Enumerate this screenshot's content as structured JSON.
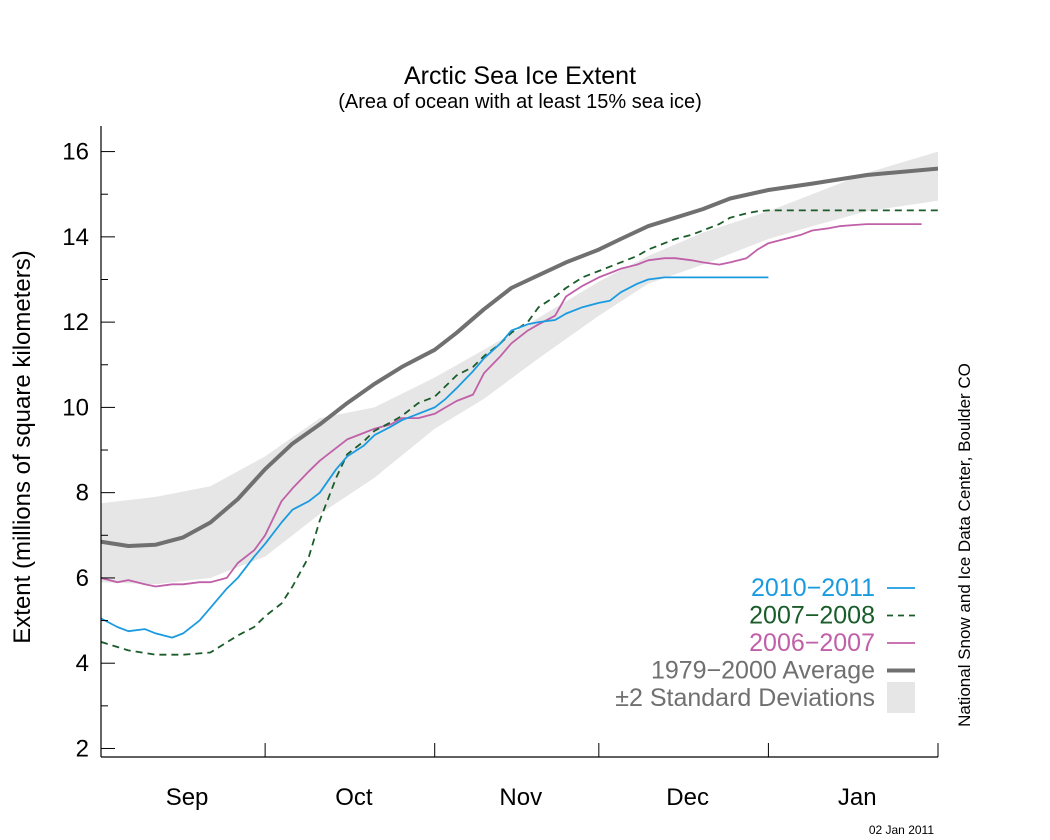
{
  "chart_data": {
    "type": "line",
    "title": "Arctic Sea Ice Extent",
    "subtitle": "(Area of ocean with at least 15% sea ice)",
    "ylabel": "Extent (millions of square kilometers)",
    "xlabel": "",
    "ylim": [
      1.8,
      16.6
    ],
    "yticks": [
      2,
      4,
      6,
      8,
      10,
      12,
      14,
      16
    ],
    "xlim": [
      0,
      153
    ],
    "months": [
      {
        "label": "Sep",
        "center": 15
      },
      {
        "label": "Oct",
        "center": 45.5
      },
      {
        "label": "Nov",
        "center": 76
      },
      {
        "label": "Dec",
        "center": 106.5
      },
      {
        "label": "Jan",
        "center": 137.5
      }
    ],
    "month_boundaries": [
      0,
      30,
      61,
      91,
      122,
      153
    ],
    "credit": "National Snow and Ice Data Center, Boulder CO",
    "date_stamp": "02 Jan 2011",
    "grid": false,
    "legend_placement": "bottom-right",
    "band": {
      "name": "±2 Standard Deviations",
      "color": "#e6e6e6",
      "x": [
        0,
        10,
        20,
        30,
        40,
        50,
        61,
        70,
        80,
        91,
        100,
        110,
        122,
        130,
        140,
        153
      ],
      "upper": [
        7.75,
        7.9,
        8.15,
        8.85,
        9.75,
        10.0,
        10.7,
        11.35,
        12.1,
        12.95,
        13.55,
        14.1,
        14.6,
        15.0,
        15.5,
        16.0
      ],
      "lower": [
        5.9,
        5.85,
        6.0,
        6.5,
        7.5,
        8.35,
        9.5,
        10.2,
        11.15,
        12.15,
        12.9,
        13.35,
        13.95,
        14.25,
        14.6,
        14.85
      ]
    },
    "series": [
      {
        "name": "1979−2000 Average",
        "color": "#707070",
        "style": "thick",
        "x": [
          0,
          5,
          10,
          15,
          20,
          25,
          30,
          35,
          40,
          45,
          50,
          55,
          61,
          65,
          70,
          75,
          80,
          85,
          91,
          95,
          100,
          105,
          110,
          115,
          122,
          130,
          140,
          153
        ],
        "y": [
          6.85,
          6.75,
          6.78,
          6.95,
          7.3,
          7.85,
          8.55,
          9.15,
          9.6,
          10.1,
          10.55,
          10.95,
          11.35,
          11.75,
          12.3,
          12.8,
          13.1,
          13.4,
          13.7,
          13.95,
          14.25,
          14.45,
          14.65,
          14.9,
          15.1,
          15.25,
          15.45,
          15.6
        ]
      },
      {
        "name": "2006−2007",
        "color": "#c060a8",
        "style": "solid",
        "x": [
          0,
          3,
          5,
          8,
          10,
          13,
          15,
          18,
          20,
          23,
          25,
          28,
          30,
          33,
          35,
          38,
          40,
          43,
          45,
          48,
          50,
          53,
          55,
          58,
          61,
          63,
          65,
          68,
          70,
          73,
          75,
          78,
          80,
          83,
          85,
          88,
          91,
          93,
          95,
          98,
          100,
          103,
          105,
          108,
          110,
          113,
          115,
          118,
          120,
          122,
          125,
          128,
          130,
          133,
          135,
          138,
          140,
          143,
          145,
          148,
          150
        ],
        "y": [
          6.0,
          5.9,
          5.95,
          5.85,
          5.8,
          5.85,
          5.85,
          5.9,
          5.9,
          6.0,
          6.35,
          6.65,
          7.0,
          7.8,
          8.1,
          8.5,
          8.75,
          9.05,
          9.25,
          9.4,
          9.5,
          9.6,
          9.75,
          9.75,
          9.85,
          10.0,
          10.15,
          10.3,
          10.8,
          11.2,
          11.5,
          11.8,
          11.95,
          12.15,
          12.6,
          12.85,
          13.05,
          13.15,
          13.25,
          13.35,
          13.45,
          13.5,
          13.5,
          13.45,
          13.4,
          13.35,
          13.4,
          13.5,
          13.7,
          13.85,
          13.95,
          14.05,
          14.15,
          14.2,
          14.25,
          14.28,
          14.3,
          14.3,
          14.3,
          14.3,
          14.3
        ]
      },
      {
        "name": "2007−2008",
        "color": "#1a5c2a",
        "style": "dashed",
        "x": [
          0,
          5,
          10,
          15,
          20,
          25,
          28,
          30,
          33,
          35,
          38,
          40,
          43,
          45,
          48,
          50,
          53,
          55,
          58,
          61,
          63,
          65,
          68,
          70,
          73,
          75,
          78,
          80,
          83,
          85,
          88,
          91,
          93,
          95,
          98,
          100,
          103,
          105,
          108,
          110,
          113,
          115,
          118,
          120,
          122,
          125,
          128,
          130,
          133,
          135,
          138,
          140,
          143,
          145,
          148,
          150,
          153
        ],
        "y": [
          4.5,
          4.3,
          4.2,
          4.2,
          4.25,
          4.65,
          4.85,
          5.1,
          5.4,
          5.8,
          6.5,
          7.35,
          8.35,
          8.9,
          9.2,
          9.45,
          9.65,
          9.8,
          10.1,
          10.25,
          10.5,
          10.75,
          10.95,
          11.2,
          11.5,
          11.75,
          12.0,
          12.35,
          12.6,
          12.8,
          13.05,
          13.2,
          13.3,
          13.4,
          13.55,
          13.7,
          13.85,
          13.95,
          14.05,
          14.15,
          14.3,
          14.45,
          14.55,
          14.6,
          14.62,
          14.62,
          14.62,
          14.62,
          14.62,
          14.62,
          14.62,
          14.62,
          14.62,
          14.62,
          14.62,
          14.62,
          14.62
        ]
      },
      {
        "name": "2010−2011",
        "color": "#1a9be0",
        "style": "solid",
        "x": [
          0,
          3,
          5,
          8,
          10,
          13,
          15,
          18,
          20,
          23,
          25,
          28,
          30,
          33,
          35,
          38,
          40,
          43,
          45,
          48,
          50,
          53,
          55,
          58,
          61,
          63,
          65,
          68,
          70,
          73,
          75,
          78,
          80,
          83,
          85,
          88,
          91,
          93,
          95,
          98,
          100,
          103,
          105,
          108,
          110,
          113,
          115,
          118,
          120,
          122
        ],
        "y": [
          5.05,
          4.85,
          4.75,
          4.8,
          4.7,
          4.6,
          4.7,
          5.0,
          5.3,
          5.75,
          6.0,
          6.5,
          6.8,
          7.3,
          7.6,
          7.8,
          8.0,
          8.55,
          8.85,
          9.1,
          9.35,
          9.55,
          9.7,
          9.85,
          10.0,
          10.2,
          10.45,
          10.85,
          11.15,
          11.5,
          11.8,
          11.95,
          12.0,
          12.05,
          12.2,
          12.35,
          12.45,
          12.5,
          12.7,
          12.9,
          13.0,
          13.05,
          13.05,
          13.05,
          13.05,
          13.05,
          13.05,
          13.05,
          13.05,
          13.05
        ]
      }
    ]
  },
  "legend": [
    {
      "label": "2010−2011",
      "color": "#1a9be0",
      "style": "solid"
    },
    {
      "label": "2007−2008",
      "color": "#1a5c2a",
      "style": "dashed"
    },
    {
      "label": "2006−2007",
      "color": "#c060a8",
      "style": "solid"
    },
    {
      "label": "1979−2000 Average",
      "color": "#707070",
      "style": "thick"
    },
    {
      "label": "±2 Standard Deviations",
      "color": "#e6e6e6",
      "style": "band",
      "text_color": "#707070"
    }
  ]
}
